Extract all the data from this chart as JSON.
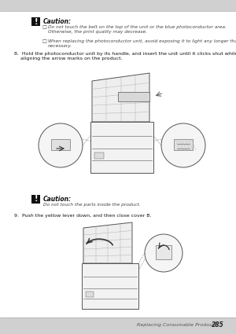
{
  "bg_color_top": "#d8d8d8",
  "bg_color_page": "#ffffff",
  "bg_color_bottom": "#d8d8d8",
  "footer_text": "Replacing Consumable Products",
  "footer_page": "285",
  "caution1_title": "Caution:",
  "caution1_b1": "Do not touch the belt on the top of the unit or the blue photoconductor area.\nOtherwise, the print quality may decrease.",
  "caution1_b2": "When replacing the photoconductor unit, avoid exposing it to light any longer than\nnecessary.",
  "step8_text": "8.  Hold the photoconductor unit by its handle, and insert the unit until it clicks shut while\n    aligning the arrow marks on the product.",
  "caution2_title": "Caution:",
  "caution2_text": "Do not touch the parts inside the product.",
  "step9_text": "9.  Push the yellow lever down, and then close cover B.",
  "text_color": "#333333",
  "text_dark": "#111111"
}
